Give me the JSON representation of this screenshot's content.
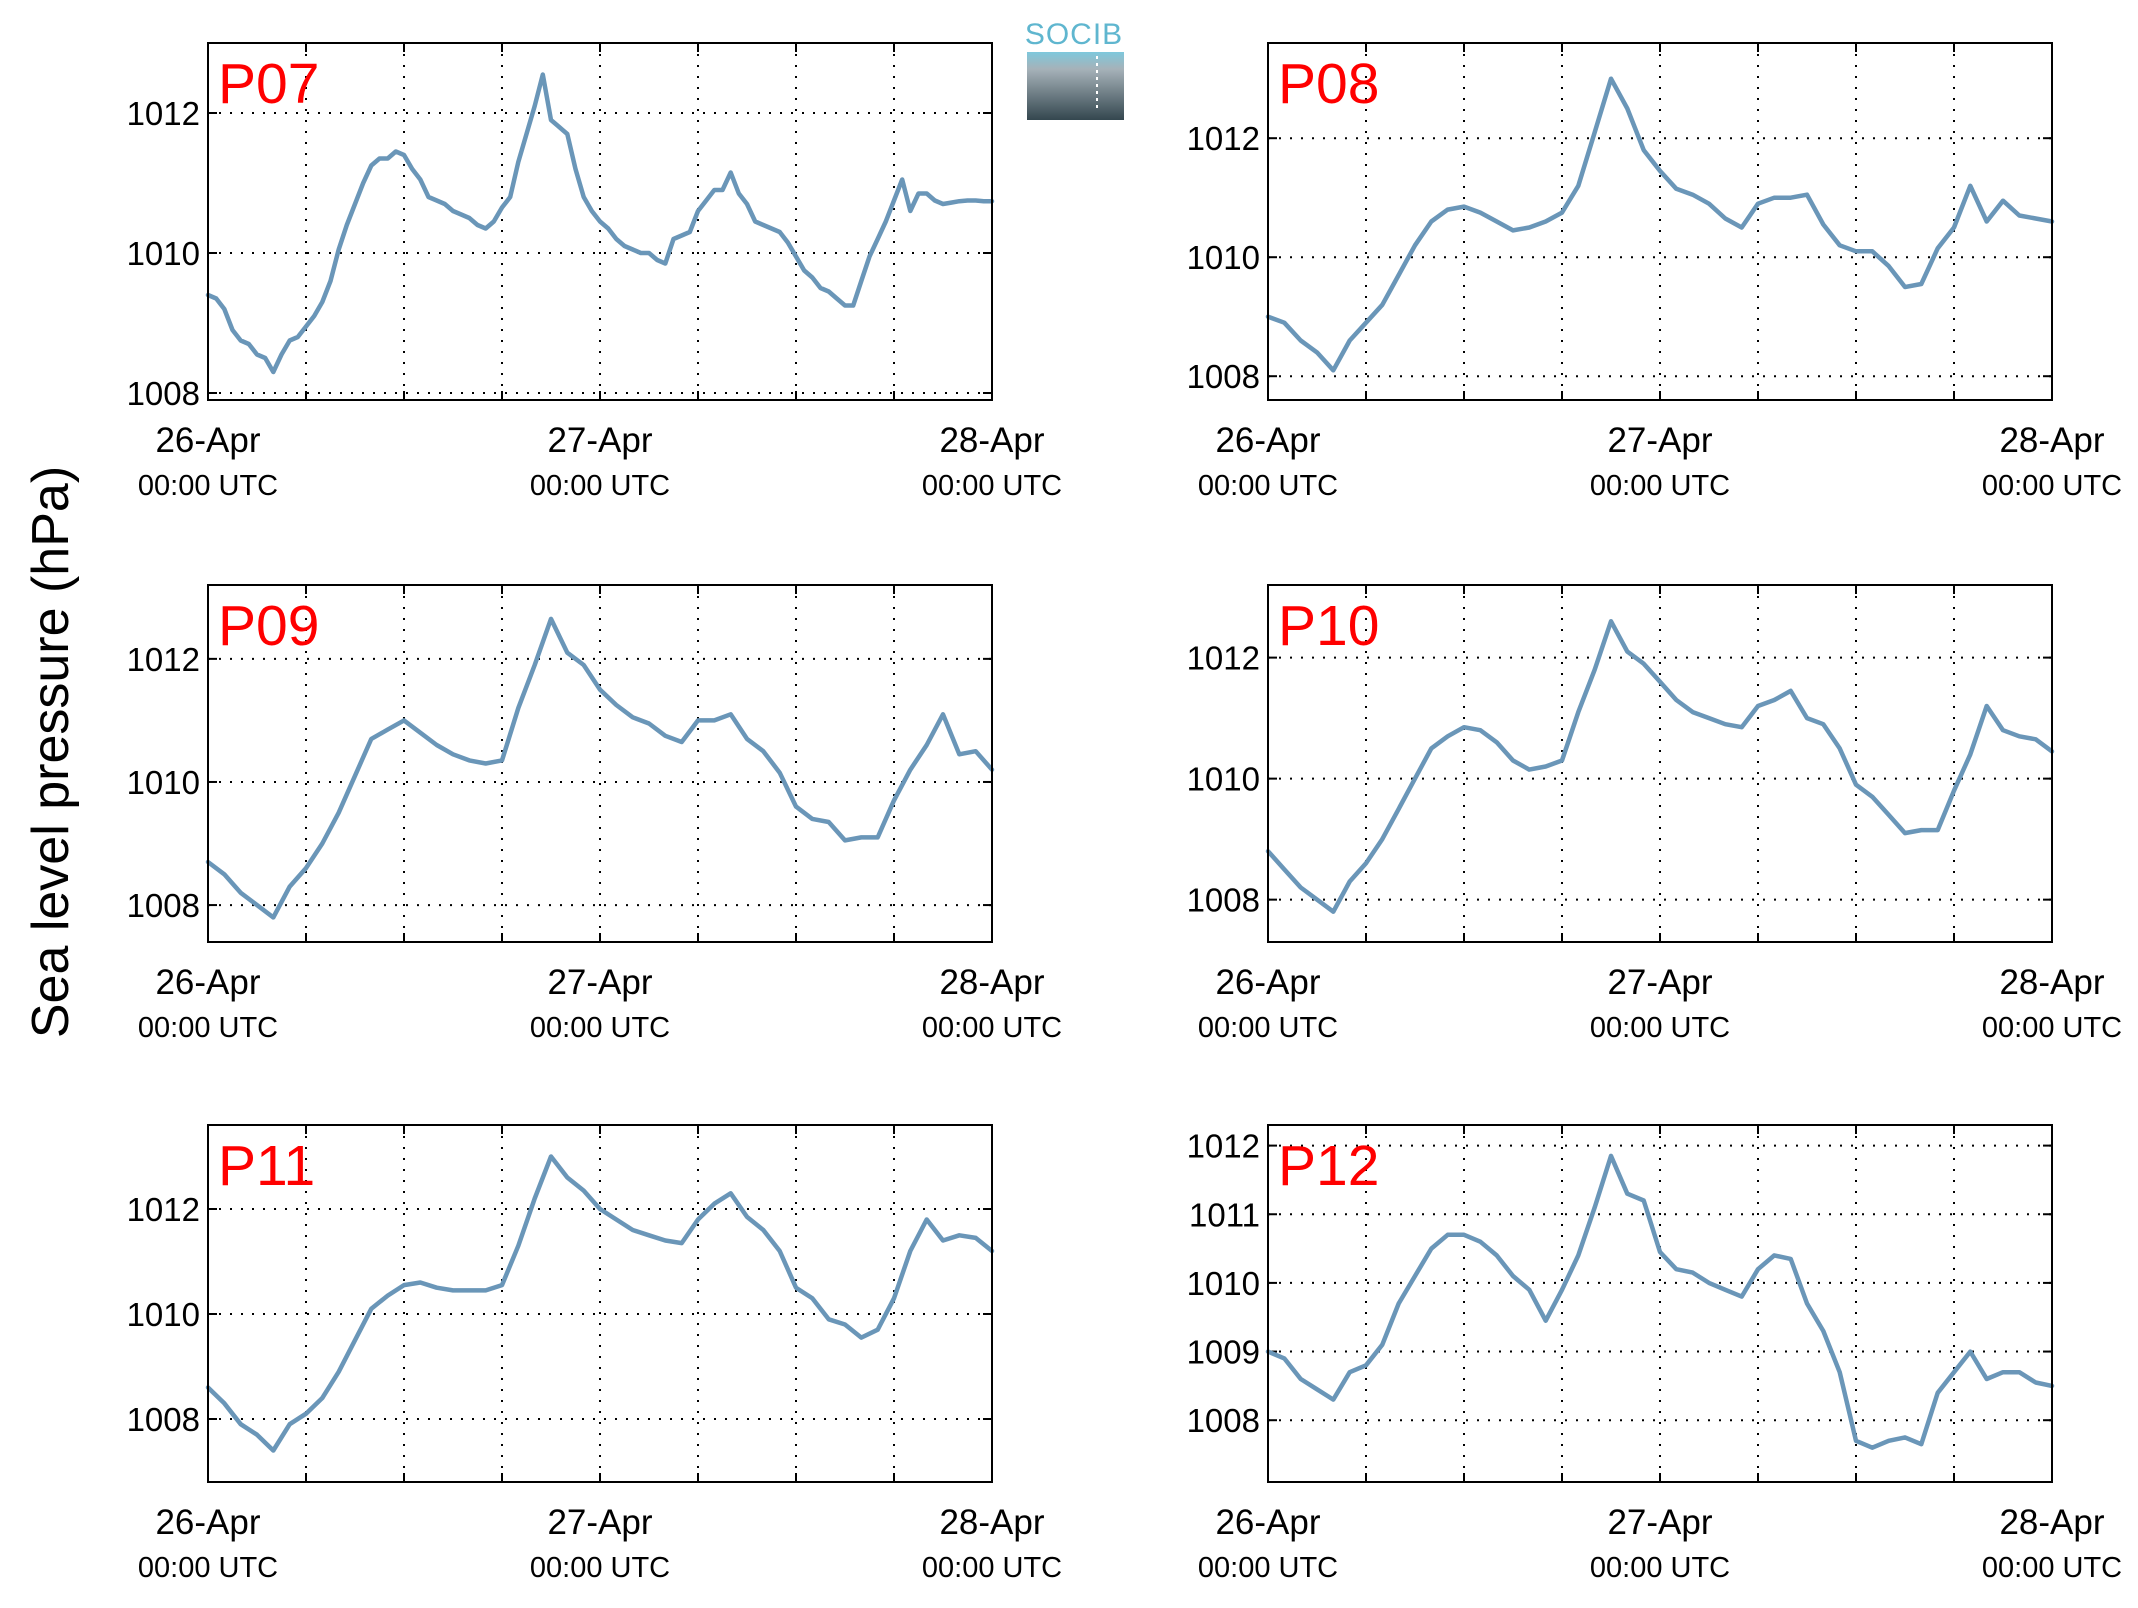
{
  "figure": {
    "ylabel": "Sea level pressure (hPa)",
    "logo": {
      "text": "SOCIB"
    }
  },
  "chart_data": [
    {
      "type": "line",
      "panel_label": "P07",
      "x_ticks": [
        {
          "date": "26-Apr",
          "time": "00:00 UTC",
          "x": 0
        },
        {
          "date": "27-Apr",
          "time": "00:00 UTC",
          "x": 24
        },
        {
          "date": "28-Apr",
          "time": "00:00 UTC",
          "x": 48
        }
      ],
      "x_grid": [
        6,
        12,
        18,
        24,
        30,
        36,
        42
      ],
      "xlim": [
        0,
        48
      ],
      "xunit": "hours since 26-Apr 00:00 UTC",
      "ylim": [
        1007.9,
        1013.0
      ],
      "y_ticks": [
        1008,
        1010,
        1012
      ],
      "grid": true,
      "series": [
        {
          "color": "#6a96b8",
          "x": [
            0,
            0.5,
            1,
            1.5,
            2,
            2.5,
            3,
            3.5,
            4,
            4.5,
            5,
            5.5,
            6,
            6.5,
            7,
            7.5,
            8,
            8.5,
            9,
            9.5,
            10,
            10.5,
            11,
            11.5,
            12,
            12.5,
            13,
            13.5,
            14,
            14.5,
            15,
            15.5,
            16,
            16.5,
            17,
            17.5,
            18,
            18.5,
            19,
            19.5,
            20,
            20.5,
            21,
            21.5,
            22,
            22.5,
            23,
            23.5,
            24,
            24.5,
            25,
            25.5,
            26,
            26.5,
            27,
            27.5,
            28,
            28.5,
            29,
            29.5,
            30,
            30.5,
            31,
            31.5,
            32,
            32.5,
            33,
            33.5,
            34,
            34.5,
            35,
            35.5,
            36,
            36.5,
            37,
            37.5,
            38,
            38.5,
            39,
            39.5,
            40,
            40.5,
            41,
            41.5,
            42,
            42.5,
            43,
            43.5,
            44,
            44.5,
            45,
            45.5,
            46,
            46.5,
            47,
            47.5,
            48
          ],
          "y": [
            1009.4,
            1009.35,
            1009.2,
            1008.9,
            1008.75,
            1008.7,
            1008.55,
            1008.5,
            1008.3,
            1008.55,
            1008.75,
            1008.8,
            1008.95,
            1009.1,
            1009.3,
            1009.6,
            1010.05,
            1010.4,
            1010.7,
            1011.0,
            1011.25,
            1011.35,
            1011.35,
            1011.45,
            1011.4,
            1011.2,
            1011.05,
            1010.8,
            1010.75,
            1010.7,
            1010.6,
            1010.55,
            1010.5,
            1010.4,
            1010.35,
            1010.45,
            1010.65,
            1010.8,
            1011.3,
            1011.7,
            1012.1,
            1012.55,
            1011.9,
            1011.8,
            1011.7,
            1011.2,
            1010.8,
            1010.6,
            1010.45,
            1010.35,
            1010.2,
            1010.1,
            1010.05,
            1010.0,
            1010.0,
            1009.9,
            1009.85,
            1010.2,
            1010.25,
            1010.3,
            1010.6,
            1010.75,
            1010.9,
            1010.9,
            1011.15,
            1010.85,
            1010.7,
            1010.45,
            1010.4,
            1010.35,
            1010.3,
            1010.15,
            1009.95,
            1009.75,
            1009.65,
            1009.5,
            1009.45,
            1009.35,
            1009.25,
            1009.25,
            1009.6,
            1009.95,
            1010.2,
            1010.45,
            1010.75,
            1011.05,
            1010.6,
            1010.85,
            1010.85,
            1010.75,
            1010.7,
            1010.72,
            1010.74,
            1010.75,
            1010.75,
            1010.74,
            1010.74
          ]
        }
      ]
    },
    {
      "type": "line",
      "panel_label": "P08",
      "x_ticks": [
        {
          "date": "26-Apr",
          "time": "00:00 UTC",
          "x": 0
        },
        {
          "date": "27-Apr",
          "time": "00:00 UTC",
          "x": 24
        },
        {
          "date": "28-Apr",
          "time": "00:00 UTC",
          "x": 48
        }
      ],
      "x_grid": [
        6,
        12,
        18,
        24,
        30,
        36,
        42
      ],
      "xlim": [
        0,
        48
      ],
      "xunit": "hours since 26-Apr 00:00 UTC",
      "ylim": [
        1007.6,
        1013.6
      ],
      "y_ticks": [
        1008,
        1010,
        1012
      ],
      "grid": true,
      "series": [
        {
          "color": "#6a96b8",
          "x": [
            0,
            1,
            2,
            3,
            4,
            5,
            6,
            7,
            8,
            9,
            10,
            11,
            12,
            13,
            14,
            15,
            16,
            17,
            18,
            19,
            20,
            21,
            22,
            23,
            24,
            25,
            26,
            27,
            28,
            29,
            30,
            31,
            32,
            33,
            34,
            35,
            36,
            37,
            38,
            39,
            40,
            41,
            42,
            43,
            44,
            45,
            46,
            47,
            48
          ],
          "y": [
            1009.0,
            1008.9,
            1008.6,
            1008.4,
            1008.1,
            1008.6,
            1008.9,
            1009.2,
            1009.7,
            1010.2,
            1010.6,
            1010.8,
            1010.85,
            1010.75,
            1010.6,
            1010.45,
            1010.5,
            1010.6,
            1010.75,
            1011.2,
            1012.1,
            1013.0,
            1012.5,
            1011.8,
            1011.45,
            1011.15,
            1011.05,
            1010.9,
            1010.65,
            1010.5,
            1010.9,
            1011.0,
            1011.0,
            1011.05,
            1010.55,
            1010.2,
            1010.1,
            1010.1,
            1009.85,
            1009.5,
            1009.55,
            1010.15,
            1010.5,
            1011.2,
            1010.6,
            1010.95,
            1010.7,
            1010.65,
            1010.6
          ]
        }
      ]
    },
    {
      "type": "line",
      "panel_label": "P09",
      "x_ticks": [
        {
          "date": "26-Apr",
          "time": "00:00 UTC",
          "x": 0
        },
        {
          "date": "27-Apr",
          "time": "00:00 UTC",
          "x": 24
        },
        {
          "date": "28-Apr",
          "time": "00:00 UTC",
          "x": 48
        }
      ],
      "x_grid": [
        6,
        12,
        18,
        24,
        30,
        36,
        42
      ],
      "xlim": [
        0,
        48
      ],
      "xunit": "hours since 26-Apr 00:00 UTC",
      "ylim": [
        1007.4,
        1013.2
      ],
      "y_ticks": [
        1008,
        1010,
        1012
      ],
      "grid": true,
      "series": [
        {
          "color": "#6a96b8",
          "x": [
            0,
            1,
            2,
            3,
            4,
            5,
            6,
            7,
            8,
            9,
            10,
            11,
            12,
            13,
            14,
            15,
            16,
            17,
            18,
            19,
            20,
            21,
            22,
            23,
            24,
            25,
            26,
            27,
            28,
            29,
            30,
            31,
            32,
            33,
            34,
            35,
            36,
            37,
            38,
            39,
            40,
            41,
            42,
            43,
            44,
            45,
            46,
            47,
            48
          ],
          "y": [
            1008.7,
            1008.5,
            1008.2,
            1008.0,
            1007.8,
            1008.3,
            1008.6,
            1009.0,
            1009.5,
            1010.1,
            1010.7,
            1010.85,
            1011.0,
            1010.8,
            1010.6,
            1010.45,
            1010.35,
            1010.3,
            1010.35,
            1011.2,
            1011.9,
            1012.65,
            1012.1,
            1011.9,
            1011.5,
            1011.25,
            1011.05,
            1010.95,
            1010.75,
            1010.65,
            1011.0,
            1011.0,
            1011.1,
            1010.7,
            1010.5,
            1010.15,
            1009.6,
            1009.4,
            1009.35,
            1009.05,
            1009.1,
            1009.1,
            1009.7,
            1010.2,
            1010.6,
            1011.1,
            1010.45,
            1010.5,
            1010.2
          ]
        }
      ]
    },
    {
      "type": "line",
      "panel_label": "P10",
      "x_ticks": [
        {
          "date": "26-Apr",
          "time": "00:00 UTC",
          "x": 0
        },
        {
          "date": "27-Apr",
          "time": "00:00 UTC",
          "x": 24
        },
        {
          "date": "28-Apr",
          "time": "00:00 UTC",
          "x": 48
        }
      ],
      "x_grid": [
        6,
        12,
        18,
        24,
        30,
        36,
        42
      ],
      "xlim": [
        0,
        48
      ],
      "xunit": "hours since 26-Apr 00:00 UTC",
      "ylim": [
        1007.3,
        1013.2
      ],
      "y_ticks": [
        1008,
        1010,
        1012
      ],
      "grid": true,
      "series": [
        {
          "color": "#6a96b8",
          "x": [
            0,
            1,
            2,
            3,
            4,
            5,
            6,
            7,
            8,
            9,
            10,
            11,
            12,
            13,
            14,
            15,
            16,
            17,
            18,
            19,
            20,
            21,
            22,
            23,
            24,
            25,
            26,
            27,
            28,
            29,
            30,
            31,
            32,
            33,
            34,
            35,
            36,
            37,
            38,
            39,
            40,
            41,
            42,
            43,
            44,
            45,
            46,
            47,
            48
          ],
          "y": [
            1008.8,
            1008.5,
            1008.2,
            1008.0,
            1007.8,
            1008.3,
            1008.6,
            1009.0,
            1009.5,
            1010.0,
            1010.5,
            1010.7,
            1010.85,
            1010.8,
            1010.6,
            1010.3,
            1010.15,
            1010.2,
            1010.3,
            1011.1,
            1011.8,
            1012.6,
            1012.1,
            1011.9,
            1011.6,
            1011.3,
            1011.1,
            1011.0,
            1010.9,
            1010.85,
            1011.2,
            1011.3,
            1011.45,
            1011.0,
            1010.9,
            1010.5,
            1009.9,
            1009.7,
            1009.4,
            1009.1,
            1009.15,
            1009.15,
            1009.8,
            1010.4,
            1011.2,
            1010.8,
            1010.7,
            1010.65,
            1010.45
          ]
        }
      ]
    },
    {
      "type": "line",
      "panel_label": "P11",
      "x_ticks": [
        {
          "date": "26-Apr",
          "time": "00:00 UTC",
          "x": 0
        },
        {
          "date": "27-Apr",
          "time": "00:00 UTC",
          "x": 24
        },
        {
          "date": "28-Apr",
          "time": "00:00 UTC",
          "x": 48
        }
      ],
      "x_grid": [
        6,
        12,
        18,
        24,
        30,
        36,
        42
      ],
      "xlim": [
        0,
        48
      ],
      "xunit": "hours since 26-Apr 00:00 UTC",
      "ylim": [
        1006.8,
        1013.6
      ],
      "y_ticks": [
        1008,
        1010,
        1012
      ],
      "grid": true,
      "series": [
        {
          "color": "#6a96b8",
          "x": [
            0,
            1,
            2,
            3,
            4,
            5,
            6,
            7,
            8,
            9,
            10,
            11,
            12,
            13,
            14,
            15,
            16,
            17,
            18,
            19,
            20,
            21,
            22,
            23,
            24,
            25,
            26,
            27,
            28,
            29,
            30,
            31,
            32,
            33,
            34,
            35,
            36,
            37,
            38,
            39,
            40,
            41,
            42,
            43,
            44,
            45,
            46,
            47,
            48
          ],
          "y": [
            1008.6,
            1008.3,
            1007.9,
            1007.7,
            1007.4,
            1007.9,
            1008.1,
            1008.4,
            1008.9,
            1009.5,
            1010.1,
            1010.35,
            1010.55,
            1010.6,
            1010.5,
            1010.45,
            1010.45,
            1010.45,
            1010.55,
            1011.3,
            1012.2,
            1013.0,
            1012.6,
            1012.35,
            1012.0,
            1011.8,
            1011.6,
            1011.5,
            1011.4,
            1011.35,
            1011.8,
            1012.1,
            1012.3,
            1011.85,
            1011.6,
            1011.2,
            1010.5,
            1010.3,
            1009.9,
            1009.8,
            1009.55,
            1009.7,
            1010.3,
            1011.2,
            1011.8,
            1011.4,
            1011.5,
            1011.45,
            1011.2
          ]
        }
      ]
    },
    {
      "type": "line",
      "panel_label": "P12",
      "x_ticks": [
        {
          "date": "26-Apr",
          "time": "00:00 UTC",
          "x": 0
        },
        {
          "date": "27-Apr",
          "time": "00:00 UTC",
          "x": 24
        },
        {
          "date": "28-Apr",
          "time": "00:00 UTC",
          "x": 48
        }
      ],
      "x_grid": [
        6,
        12,
        18,
        24,
        30,
        36,
        42
      ],
      "xlim": [
        0,
        48
      ],
      "xunit": "hours since 26-Apr 00:00 UTC",
      "ylim": [
        1007.1,
        1012.3
      ],
      "y_ticks": [
        1008,
        1009,
        1010,
        1011,
        1012
      ],
      "grid": true,
      "series": [
        {
          "color": "#6a96b8",
          "x": [
            0,
            1,
            2,
            3,
            4,
            5,
            6,
            7,
            8,
            9,
            10,
            11,
            12,
            13,
            14,
            15,
            16,
            17,
            18,
            19,
            20,
            21,
            22,
            23,
            24,
            25,
            26,
            27,
            28,
            29,
            30,
            31,
            32,
            33,
            34,
            35,
            36,
            37,
            38,
            39,
            40,
            41,
            42,
            43,
            44,
            45,
            46,
            47,
            48
          ],
          "y": [
            1009.0,
            1008.9,
            1008.6,
            1008.45,
            1008.3,
            1008.7,
            1008.8,
            1009.1,
            1009.7,
            1010.1,
            1010.5,
            1010.7,
            1010.7,
            1010.6,
            1010.4,
            1010.1,
            1009.9,
            1009.45,
            1009.9,
            1010.4,
            1011.1,
            1011.85,
            1011.3,
            1011.2,
            1010.45,
            1010.2,
            1010.15,
            1010.0,
            1009.9,
            1009.8,
            1010.2,
            1010.4,
            1010.35,
            1009.7,
            1009.3,
            1008.7,
            1007.7,
            1007.6,
            1007.7,
            1007.75,
            1007.65,
            1008.4,
            1008.7,
            1009.0,
            1008.6,
            1008.7,
            1008.7,
            1008.55,
            1008.5
          ]
        }
      ]
    }
  ]
}
